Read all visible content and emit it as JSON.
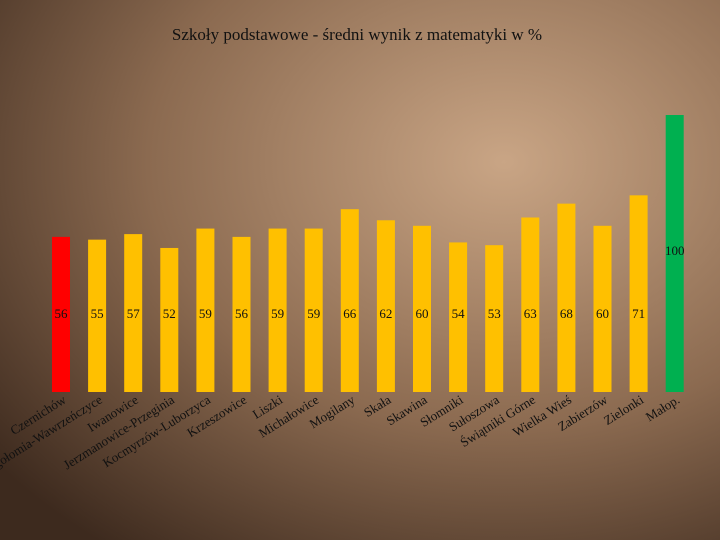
{
  "chart_data": {
    "type": "bar",
    "title": "Szkoły podstawowe - średni wynik z matematyki w %",
    "categories": [
      "Czernichów",
      "Igołomia-Wawrzeńczyce",
      "Iwanowice",
      "Jerzmanowice-Przeginia",
      "Kocmyrzów-Luborzyca",
      "Krzeszowice",
      "Liszki",
      "Michałowice",
      "Mogilany",
      "Skała",
      "Skawina",
      "Słomniki",
      "Sułoszowa",
      "Świątniki Górne",
      "Wielka Wieś",
      "Zabierzów",
      "Zielonki",
      "Małop."
    ],
    "values": [
      56,
      55,
      57,
      52,
      59,
      56,
      59,
      59,
      66,
      62,
      60,
      54,
      53,
      63,
      68,
      60,
      71,
      100
    ],
    "colors": [
      "#ff0000",
      "#ffc000",
      "#ffc000",
      "#ffc000",
      "#ffc000",
      "#ffc000",
      "#ffc000",
      "#ffc000",
      "#ffc000",
      "#ffc000",
      "#ffc000",
      "#ffc000",
      "#ffc000",
      "#ffc000",
      "#ffc000",
      "#ffc000",
      "#ffc000",
      "#00b050"
    ],
    "ylim": [
      0,
      100
    ]
  }
}
